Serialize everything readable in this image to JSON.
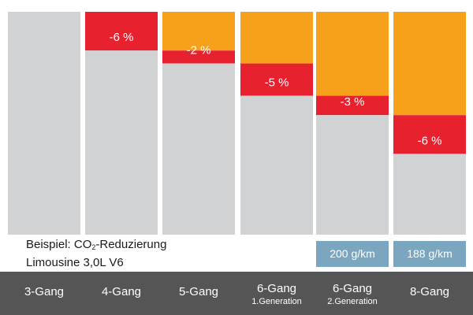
{
  "chart_data": {
    "type": "bar",
    "categories": [
      {
        "name": "3-Gang",
        "sub": ""
      },
      {
        "name": "4-Gang",
        "sub": ""
      },
      {
        "name": "5-Gang",
        "sub": ""
      },
      {
        "name": "6-Gang",
        "sub": "1.Generation"
      },
      {
        "name": "6-Gang",
        "sub": "2.Generation"
      },
      {
        "name": "8-Gang",
        "sub": ""
      }
    ],
    "relative_emission": [
      100,
      94,
      92,
      87,
      84,
      78
    ],
    "cumulative_reduction": [
      0,
      6,
      8,
      13,
      16,
      22
    ],
    "step_reduction": [
      0,
      6,
      2,
      5,
      3,
      6
    ],
    "step_labels": [
      "",
      "-6 %",
      "-2 %",
      "-5 %",
      "-3 %",
      "-6 %"
    ],
    "emissions": [
      {
        "category_index": 4,
        "label": "200 g/km"
      },
      {
        "category_index": 5,
        "label": "188 g/km"
      }
    ],
    "colors": {
      "remaining": "#d1d2d4",
      "step": "#e8212f",
      "previous": "#f7a11a",
      "emission_box": "#7aa6c0",
      "footer": "#555555"
    }
  },
  "caption": {
    "line1_prefix": "Beispiel: CO",
    "line1_sub": "2",
    "line1_suffix": "-Reduzierung",
    "line2": "Limousine 3,0L V6"
  }
}
